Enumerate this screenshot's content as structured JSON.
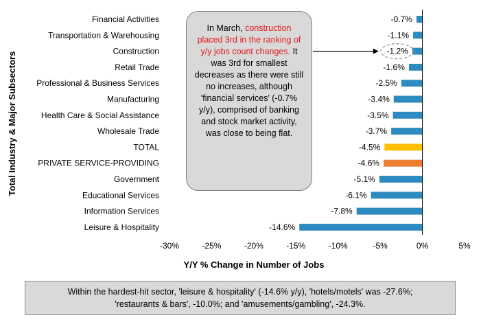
{
  "chart_data": {
    "type": "bar",
    "orientation": "horizontal",
    "categories": [
      "Financial Activities",
      "Transportation & Warehousing",
      "Construction",
      "Retail Trade",
      "Professional & Business Services",
      "Manufacturing",
      "Health Care & Social Assistance",
      "Wholesale Trade",
      "TOTAL",
      "PRIVATE SERVICE-PROVIDING",
      "Government",
      "Educational Services",
      "Information Services",
      "Leisure & Hospitality"
    ],
    "values": [
      -0.7,
      -1.1,
      -1.2,
      -1.6,
      -2.5,
      -3.4,
      -3.5,
      -3.7,
      -4.5,
      -4.6,
      -5.1,
      -6.1,
      -7.8,
      -14.6
    ],
    "data_labels": [
      "-0.7%",
      "-1.1%",
      "-1.2%",
      "-1.6%",
      "-2.5%",
      "-3.4%",
      "-3.5%",
      "-3.7%",
      "-4.5%",
      "-4.6%",
      "-5.1%",
      "-6.1%",
      "-7.8%",
      "-14.6%"
    ],
    "bar_colors": [
      "#2e8bc0",
      "#2e8bc0",
      "#2e8bc0",
      "#2e8bc0",
      "#2e8bc0",
      "#2e8bc0",
      "#2e8bc0",
      "#2e8bc0",
      "#ffc000",
      "#ed7d31",
      "#2e8bc0",
      "#2e8bc0",
      "#2e8bc0",
      "#2e8bc0"
    ],
    "xlim": [
      -30,
      5
    ],
    "x_ticks": [
      -30,
      -25,
      -20,
      -15,
      -10,
      -5,
      0,
      5
    ],
    "x_tick_labels": [
      "-30%",
      "-25%",
      "-20%",
      "-15%",
      "-10%",
      "-5%",
      "0%",
      "5%"
    ],
    "xlabel": "Y/Y % Change in Number of Jobs",
    "ylabel": "Total Industry & Major Subsectors",
    "grid": false,
    "highlighted_category": "Construction"
  },
  "callout": {
    "before": "In March, ",
    "highlight": "construction placed 3rd in the ranking of y/y jobs count changes.",
    "after": " It was 3rd for smallest decreases as there were still no increases, although 'financial services' (-0.7% y/y), comprised of banking and stock market activity, was close to being flat."
  },
  "footnote": {
    "line1": "Within the hardest-hit sector, 'leisure & hospitality' (-14.6% y/y), 'hotels/motels' was -27.6%;",
    "line2": "'restaurants & bars', -10.0%; and 'amusements/gambling', -24.3%."
  },
  "colors": {
    "bar_default": "#2e8bc0",
    "bar_total": "#ffc000",
    "bar_private": "#ed7d31",
    "callout_bg": "#d9d9d9",
    "callout_highlight": "#e31a1c"
  }
}
